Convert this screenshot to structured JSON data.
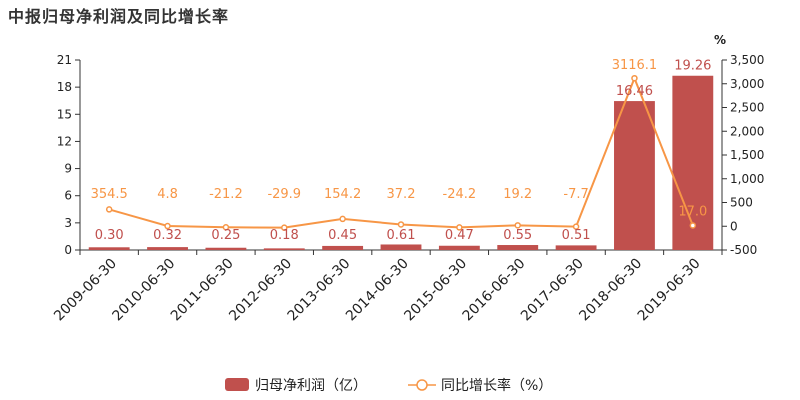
{
  "title": "中报归母净利润及同比增长率",
  "chart_data": {
    "type": "bar",
    "title": "中报归母净利润及同比增长率",
    "categories": [
      "2009-06-30",
      "2010-06-30",
      "2011-06-30",
      "2012-06-30",
      "2013-06-30",
      "2014-06-30",
      "2015-06-30",
      "2016-06-30",
      "2017-06-30",
      "2018-06-30",
      "2019-06-30"
    ],
    "series": [
      {
        "name": "归母净利润（亿）",
        "type": "bar",
        "color": "#c0504d",
        "values": [
          0.3,
          0.32,
          0.25,
          0.18,
          0.45,
          0.61,
          0.47,
          0.55,
          0.51,
          16.46,
          19.26
        ],
        "labels": [
          "0.30",
          "0.32",
          "0.25",
          "0.18",
          "0.45",
          "0.61",
          "0.47",
          "0.55",
          "0.51",
          "16.46",
          "19.26"
        ]
      },
      {
        "name": "同比增长率（%）",
        "type": "line",
        "color": "#f79646",
        "values": [
          354.5,
          4.8,
          -21.2,
          -29.9,
          154.2,
          37.2,
          -24.2,
          19.2,
          -7.7,
          3116.1,
          17.0
        ],
        "labels": [
          "354.5",
          "4.8",
          "-21.2",
          "-29.9",
          "154.2",
          "37.2",
          "-24.2",
          "19.2",
          "-7.7",
          "3116.1",
          "17.0"
        ]
      }
    ],
    "y_left": {
      "min": 0,
      "max": 21,
      "ticks": [
        "0",
        "3",
        "6",
        "9",
        "12",
        "15",
        "18",
        "21"
      ]
    },
    "y_right": {
      "label": "%",
      "min": -500,
      "max": 3500,
      "ticks": [
        "-500",
        "0",
        "500",
        "1,000",
        "1,500",
        "2,000",
        "2,500",
        "3,000",
        "3,500"
      ]
    },
    "legend": {
      "position": "bottom"
    }
  }
}
